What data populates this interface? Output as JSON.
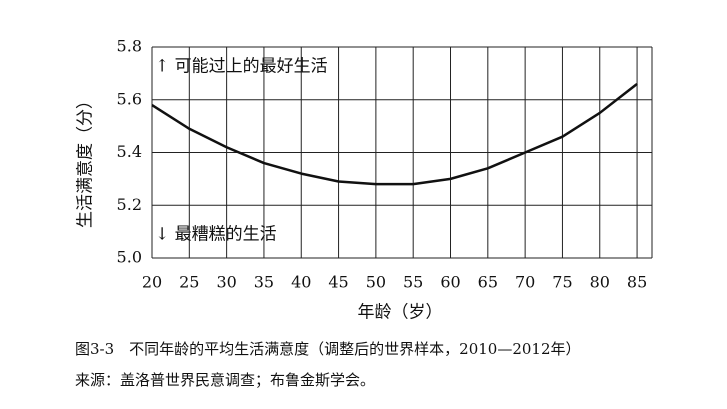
{
  "chart_data": {
    "type": "line",
    "y_label": "生活满意度（分）",
    "x_label": "年龄（岁）",
    "annotations": [
      "↑ 可能过上的最好生活",
      "↓ 最糟糕的生活"
    ],
    "caption": "图3-3　不同年龄的平均生活满意度（调整后的世界样本，2010—2012年）",
    "source": "来源：盖洛普世界民意调查；布鲁金斯学会。",
    "x": [
      20,
      25,
      30,
      35,
      40,
      45,
      50,
      55,
      60,
      65,
      70,
      75,
      80,
      85
    ],
    "series": [
      {
        "name": "平均生活满意度",
        "color": "#111111",
        "values": [
          5.58,
          5.49,
          5.42,
          5.36,
          5.32,
          5.29,
          5.28,
          5.28,
          5.3,
          5.34,
          5.4,
          5.46,
          5.55,
          5.66
        ]
      }
    ],
    "xlim": [
      20,
      87
    ],
    "xticks": [
      20,
      25,
      30,
      35,
      40,
      45,
      50,
      55,
      60,
      65,
      70,
      75,
      80,
      85
    ],
    "ylim": [
      5.0,
      5.8
    ],
    "yticks": [
      {
        "value": 5,
        "label": "5.0"
      },
      5.2,
      5.4,
      5.6,
      5.8
    ],
    "grid": true
  }
}
